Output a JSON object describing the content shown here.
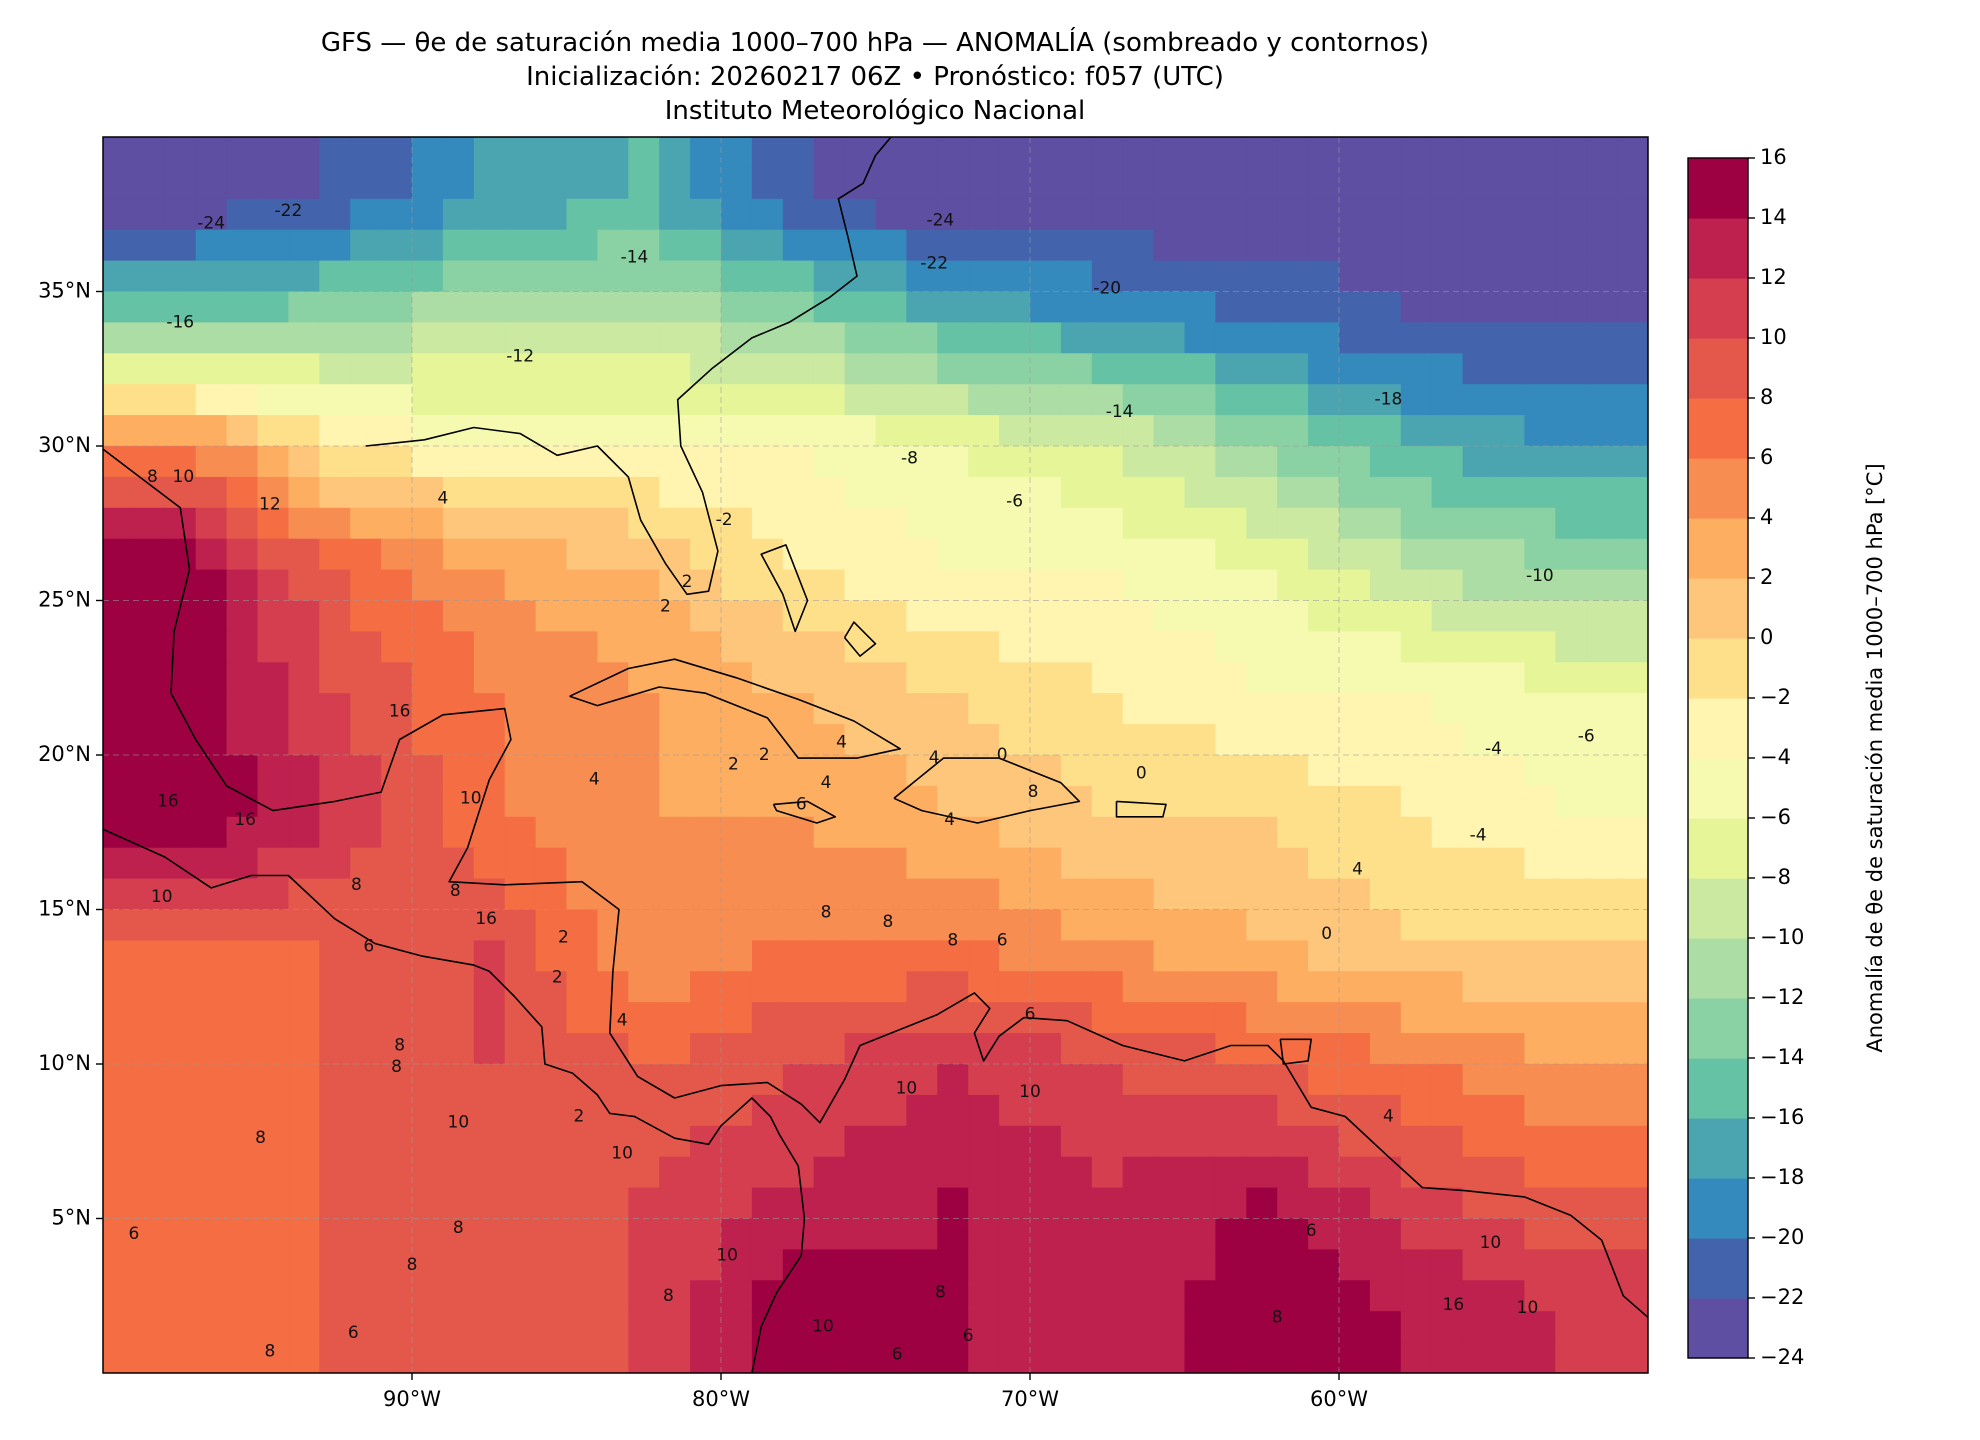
{
  "title": {
    "line1": "GFS — θe de saturación media 1000–700 hPa — ANOMALÍA (sombreado y contornos)",
    "line2": "Inicialización: 20260217 06Z   •   Pronóstico: f057 (UTC)",
    "line3": "Instituto Meteorológico Nacional"
  },
  "map": {
    "region": "Golfo de México, Mar Caribe y Atlántico occidental",
    "lon_range": [
      -100,
      -50
    ],
    "lat_range": [
      0,
      40
    ],
    "lon_ticks": [
      {
        "value": -90,
        "label": "90°W"
      },
      {
        "value": -80,
        "label": "80°W"
      },
      {
        "value": -70,
        "label": "70°W"
      },
      {
        "value": -60,
        "label": "60°W"
      }
    ],
    "lat_ticks": [
      {
        "value": 35,
        "label": "35°N"
      },
      {
        "value": 30,
        "label": "30°N"
      },
      {
        "value": 25,
        "label": "25°N"
      },
      {
        "value": 20,
        "label": "20°N"
      },
      {
        "value": 15,
        "label": "15°N"
      },
      {
        "value": 10,
        "label": "10°N"
      },
      {
        "value": 5,
        "label": "5°N"
      }
    ],
    "gridlines": true,
    "contour_labels": [
      {
        "lon": -96.5,
        "lat": 37.2,
        "text": "-24"
      },
      {
        "lon": -94.0,
        "lat": 37.6,
        "text": "-22"
      },
      {
        "lon": -97.5,
        "lat": 34.0,
        "text": "-16"
      },
      {
        "lon": -86.5,
        "lat": 32.9,
        "text": "-12"
      },
      {
        "lon": -82.8,
        "lat": 36.1,
        "text": "-14"
      },
      {
        "lon": -72.9,
        "lat": 37.3,
        "text": "-24"
      },
      {
        "lon": -73.1,
        "lat": 35.9,
        "text": "-22"
      },
      {
        "lon": -67.5,
        "lat": 35.1,
        "text": "-20"
      },
      {
        "lon": -58.4,
        "lat": 31.5,
        "text": "-18"
      },
      {
        "lon": -67.1,
        "lat": 31.1,
        "text": "-14"
      },
      {
        "lon": -73.9,
        "lat": 29.6,
        "text": "-8"
      },
      {
        "lon": -70.5,
        "lat": 28.2,
        "text": "-6"
      },
      {
        "lon": -79.9,
        "lat": 27.6,
        "text": "-2"
      },
      {
        "lon": -53.5,
        "lat": 25.8,
        "text": "-10"
      },
      {
        "lon": -55.0,
        "lat": 20.2,
        "text": "-4"
      },
      {
        "lon": -52.0,
        "lat": 20.6,
        "text": "-6"
      },
      {
        "lon": -55.5,
        "lat": 17.4,
        "text": "-4"
      },
      {
        "lon": -89.0,
        "lat": 28.3,
        "text": "4"
      },
      {
        "lon": -81.1,
        "lat": 25.6,
        "text": "2"
      },
      {
        "lon": -81.8,
        "lat": 24.8,
        "text": "2"
      },
      {
        "lon": -98.4,
        "lat": 29.0,
        "text": "8"
      },
      {
        "lon": -97.4,
        "lat": 29.0,
        "text": "10"
      },
      {
        "lon": -94.6,
        "lat": 28.1,
        "text": "12"
      },
      {
        "lon": -90.4,
        "lat": 21.4,
        "text": "16"
      },
      {
        "lon": -97.9,
        "lat": 18.5,
        "text": "16"
      },
      {
        "lon": -95.4,
        "lat": 17.9,
        "text": "16"
      },
      {
        "lon": -98.1,
        "lat": 15.4,
        "text": "10"
      },
      {
        "lon": -91.8,
        "lat": 15.8,
        "text": "8"
      },
      {
        "lon": -88.1,
        "lat": 18.6,
        "text": "10"
      },
      {
        "lon": -88.6,
        "lat": 15.6,
        "text": "8"
      },
      {
        "lon": -87.6,
        "lat": 14.7,
        "text": "16"
      },
      {
        "lon": -84.1,
        "lat": 19.2,
        "text": "4"
      },
      {
        "lon": -76.1,
        "lat": 20.4,
        "text": "4"
      },
      {
        "lon": -73.1,
        "lat": 19.9,
        "text": "4"
      },
      {
        "lon": -76.6,
        "lat": 19.1,
        "text": "4"
      },
      {
        "lon": -77.4,
        "lat": 18.4,
        "text": "6"
      },
      {
        "lon": -72.6,
        "lat": 17.9,
        "text": "4"
      },
      {
        "lon": -70.9,
        "lat": 20.0,
        "text": "0"
      },
      {
        "lon": -66.4,
        "lat": 19.4,
        "text": "0"
      },
      {
        "lon": -79.6,
        "lat": 19.7,
        "text": "2"
      },
      {
        "lon": -78.6,
        "lat": 20.0,
        "text": "2"
      },
      {
        "lon": -69.9,
        "lat": 18.8,
        "text": "8"
      },
      {
        "lon": -91.4,
        "lat": 13.8,
        "text": "6"
      },
      {
        "lon": -85.1,
        "lat": 14.1,
        "text": "2"
      },
      {
        "lon": -85.3,
        "lat": 12.8,
        "text": "2"
      },
      {
        "lon": -83.2,
        "lat": 11.4,
        "text": "4"
      },
      {
        "lon": -76.6,
        "lat": 14.9,
        "text": "8"
      },
      {
        "lon": -74.6,
        "lat": 14.6,
        "text": "8"
      },
      {
        "lon": -72.5,
        "lat": 14.0,
        "text": "8"
      },
      {
        "lon": -70.9,
        "lat": 14.0,
        "text": "6"
      },
      {
        "lon": -70.0,
        "lat": 11.6,
        "text": "6"
      },
      {
        "lon": -60.4,
        "lat": 14.2,
        "text": "0"
      },
      {
        "lon": -59.4,
        "lat": 16.3,
        "text": "4"
      },
      {
        "lon": -90.4,
        "lat": 10.6,
        "text": "8"
      },
      {
        "lon": -90.5,
        "lat": 9.9,
        "text": "8"
      },
      {
        "lon": -88.5,
        "lat": 8.1,
        "text": "10"
      },
      {
        "lon": -94.9,
        "lat": 7.6,
        "text": "8"
      },
      {
        "lon": -83.2,
        "lat": 7.1,
        "text": "10"
      },
      {
        "lon": -84.6,
        "lat": 8.3,
        "text": "2"
      },
      {
        "lon": -70.0,
        "lat": 9.1,
        "text": "10"
      },
      {
        "lon": -74.0,
        "lat": 9.2,
        "text": "10"
      },
      {
        "lon": -58.4,
        "lat": 8.3,
        "text": "4"
      },
      {
        "lon": -60.9,
        "lat": 4.6,
        "text": "6"
      },
      {
        "lon": -55.1,
        "lat": 4.2,
        "text": "10"
      },
      {
        "lon": -88.5,
        "lat": 4.7,
        "text": "8"
      },
      {
        "lon": -90.0,
        "lat": 3.5,
        "text": "8"
      },
      {
        "lon": -79.8,
        "lat": 3.8,
        "text": "10"
      },
      {
        "lon": -81.7,
        "lat": 2.5,
        "text": "8"
      },
      {
        "lon": -76.7,
        "lat": 1.5,
        "text": "10"
      },
      {
        "lon": -72.9,
        "lat": 2.6,
        "text": "8"
      },
      {
        "lon": -62.0,
        "lat": 1.8,
        "text": "8"
      },
      {
        "lon": -56.3,
        "lat": 2.2,
        "text": "16"
      },
      {
        "lon": -53.9,
        "lat": 2.1,
        "text": "10"
      },
      {
        "lon": -99.0,
        "lat": 4.5,
        "text": "6"
      },
      {
        "lon": -91.9,
        "lat": 1.3,
        "text": "6"
      },
      {
        "lon": -94.6,
        "lat": 0.7,
        "text": "8"
      },
      {
        "lon": -72.0,
        "lat": 1.2,
        "text": "6"
      },
      {
        "lon": -74.3,
        "lat": 0.6,
        "text": "6"
      }
    ]
  },
  "colorbar": {
    "label": "Anomalía de θe de saturación media 1000–700 hPa [°C]",
    "ticks": [
      -24,
      -22,
      -20,
      -18,
      -16,
      -14,
      -12,
      -10,
      -8,
      -6,
      -4,
      -2,
      0,
      2,
      4,
      6,
      8,
      10,
      12,
      14,
      16
    ],
    "tick_labels": [
      "−24",
      "−22",
      "−20",
      "−18",
      "−16",
      "−14",
      "−12",
      "−10",
      "−8",
      "−6",
      "−4",
      "−2",
      "0",
      "2",
      "4",
      "6",
      "8",
      "10",
      "12",
      "14",
      "16"
    ],
    "colors": [
      "#5e4fa2",
      "#4463ad",
      "#3489bd",
      "#4aa5b1",
      "#66c2a5",
      "#8ad1a4",
      "#abdda4",
      "#cbe9a0",
      "#e6f598",
      "#f5fab0",
      "#fff5b1",
      "#fee08b",
      "#fdc67a",
      "#fdae61",
      "#f88d52",
      "#f46d43",
      "#e4584b",
      "#d53e4f",
      "#be214e",
      "#9e0142"
    ]
  },
  "chart_data": {
    "type": "heatmap",
    "title": "GFS — θe de saturación media 1000–700 hPa — ANOMALÍA (sombreado y contornos)",
    "subtitle": "Inicialización: 20260217 06Z   •   Pronóstico: f057 (UTC)",
    "xlabel": "",
    "ylabel": "",
    "xlim": [
      -100,
      -50
    ],
    "ylim": [
      0,
      40
    ],
    "zlim": [
      -24,
      16
    ],
    "zlabel": "Anomalía de θe de saturación media 1000–700 hPa [°C]",
    "grid": true,
    "lon_centers": [
      -97.5,
      -92.5,
      -87.5,
      -82.5,
      -77.5,
      -72.5,
      -67.5,
      -62.5,
      -57.5,
      -52.5
    ],
    "lat_centers": [
      38,
      34,
      30,
      26,
      22,
      18,
      14,
      10,
      6,
      2
    ],
    "values": [
      [
        -24,
        -22,
        -18,
        -16,
        -22,
        -24,
        -24,
        -24,
        -24,
        -24
      ],
      [
        -14,
        -12,
        -10,
        -10,
        -12,
        -16,
        -18,
        -20,
        -22,
        -22
      ],
      [
        6,
        -2,
        -4,
        -4,
        -4,
        -6,
        -8,
        -12,
        -16,
        -18
      ],
      [
        16,
        8,
        4,
        2,
        -2,
        -4,
        -4,
        -6,
        -10,
        -12
      ],
      [
        16,
        10,
        6,
        4,
        2,
        0,
        -2,
        -4,
        -4,
        -6
      ],
      [
        16,
        12,
        6,
        4,
        4,
        2,
        0,
        0,
        -2,
        -4
      ],
      [
        8,
        8,
        10,
        4,
        6,
        6,
        4,
        2,
        0,
        0
      ],
      [
        6,
        8,
        10,
        8,
        10,
        12,
        10,
        8,
        6,
        4
      ],
      [
        6,
        8,
        8,
        10,
        12,
        14,
        12,
        14,
        10,
        8
      ],
      [
        6,
        8,
        8,
        10,
        16,
        14,
        12,
        16,
        14,
        12
      ]
    ]
  }
}
